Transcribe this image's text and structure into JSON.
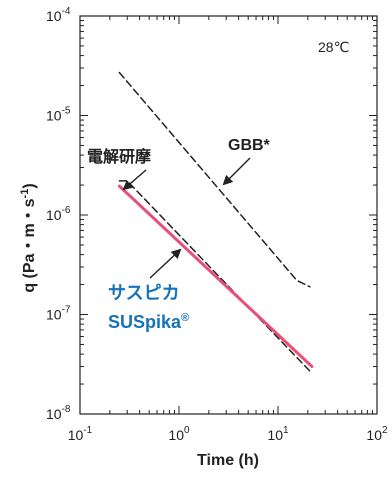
{
  "chart_data": {
    "type": "line",
    "x_scale": "log",
    "y_scale": "log",
    "xlabel": "Time (h)",
    "ylabel": "q (Pa・m・s⁻¹)",
    "xlim": [
      0.1,
      100
    ],
    "ylim": [
      1e-08,
      0.0001
    ],
    "x_ticks": [
      {
        "value": 0.1,
        "base": "10",
        "exp": "-1"
      },
      {
        "value": 1,
        "base": "10",
        "exp": "0"
      },
      {
        "value": 10,
        "base": "10",
        "exp": "1"
      },
      {
        "value": 100,
        "base": "10",
        "exp": "2"
      }
    ],
    "y_ticks": [
      {
        "value": 1e-08,
        "base": "10",
        "exp": "-8"
      },
      {
        "value": 1e-07,
        "base": "10",
        "exp": "-7"
      },
      {
        "value": 1e-06,
        "base": "10",
        "exp": "-6"
      },
      {
        "value": 1e-05,
        "base": "10",
        "exp": "-5"
      },
      {
        "value": 0.0001,
        "base": "10",
        "exp": "-4"
      }
    ],
    "grid": false,
    "temperature_label": "28℃",
    "series": [
      {
        "name": "GBB*",
        "style": "dashed",
        "color": "#222222",
        "x": [
          0.25,
          15.5,
          21.0
        ],
        "y": [
          2.7e-05,
          2.2e-07,
          1.9e-07
        ]
      },
      {
        "name": "電解研摩",
        "style": "dashed",
        "color": "#222222",
        "x": [
          0.25,
          0.3,
          21.0
        ],
        "y": [
          2.2e-06,
          2.2e-06,
          2.7e-08
        ]
      },
      {
        "name": "サスピカ SUSpika®",
        "style": "solid",
        "color": "#e8507a",
        "x": [
          0.25,
          22.0
        ],
        "y": [
          1.95e-06,
          3e-08
        ]
      }
    ],
    "annotations": [
      {
        "text": "GBB*",
        "series": "GBB*"
      },
      {
        "text": "電解研摩",
        "series": "電解研摩"
      },
      {
        "line1": "サスピカ",
        "line2": "SUSpika",
        "superscript": "®",
        "series": "サスピカ SUSpika®",
        "color": "#1673b9"
      }
    ]
  }
}
